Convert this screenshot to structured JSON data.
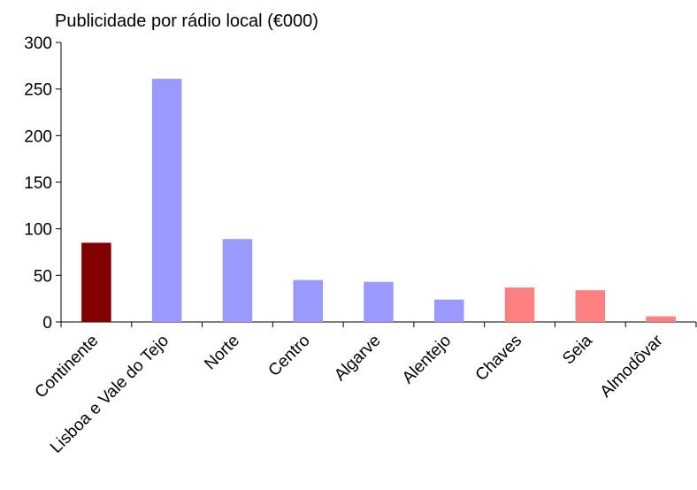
{
  "chart_data": {
    "type": "bar",
    "title": "Publicidade por rádio local (€000)",
    "xlabel": "",
    "ylabel": "",
    "ylim": [
      0,
      300
    ],
    "yticks": [
      0,
      50,
      100,
      150,
      200,
      250,
      300
    ],
    "grid": false,
    "legend": "none",
    "categories": [
      "Continente",
      "Lisboa e Vale do Tejo",
      "Norte",
      "Centro",
      "Algarve",
      "Alentejo",
      "Chaves",
      "Seia",
      "Almodôvar"
    ],
    "values": [
      85,
      261,
      89,
      45,
      43,
      24,
      37,
      34,
      6
    ],
    "colors": [
      "#800000",
      "#9999ff",
      "#9999ff",
      "#9999ff",
      "#9999ff",
      "#9999ff",
      "#ff8080",
      "#ff8080",
      "#ff8080"
    ]
  }
}
